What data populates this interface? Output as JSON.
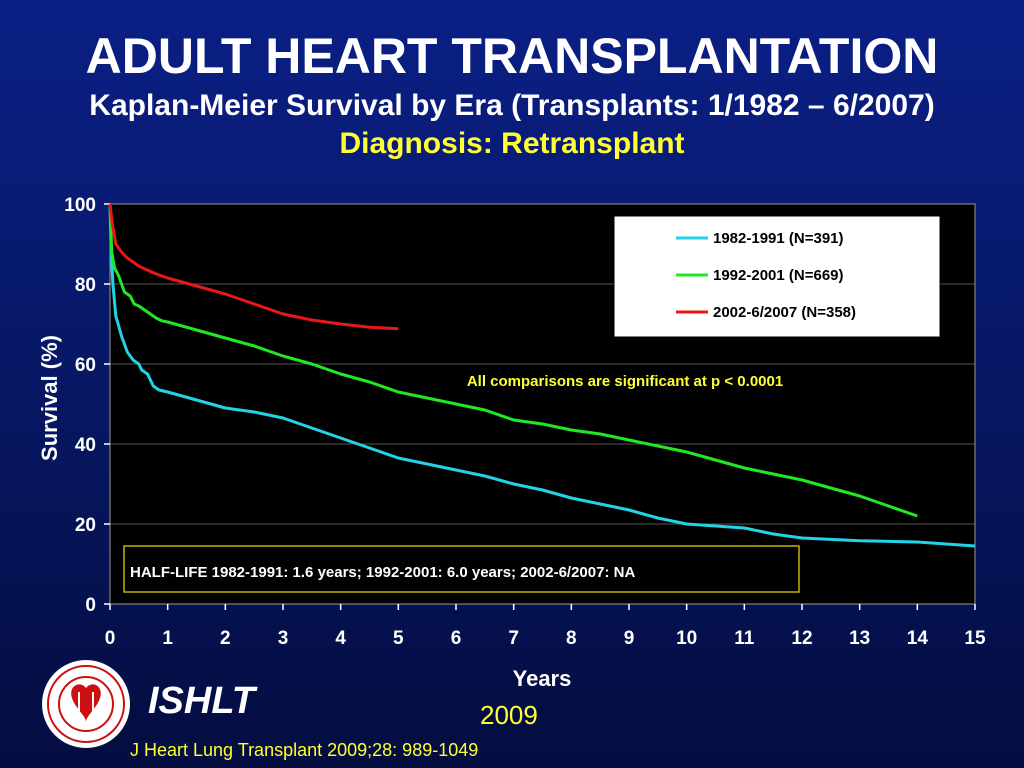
{
  "slide": {
    "title": "ADULT HEART TRANSPLANTATION",
    "subtitle": "Kaplan-Meier Survival by Era (Transplants: 1/1982 – 6/2007)",
    "diagnosis": "Diagnosis: Retransplant",
    "org": "ISHLT",
    "year": "2009",
    "citation": "J Heart Lung Transplant 2009;28: 989-1049"
  },
  "chart_data": {
    "type": "line",
    "xlabel": "Years",
    "ylabel": "Survival (%)",
    "xlim": [
      0,
      15
    ],
    "ylim": [
      0,
      100
    ],
    "x_ticks": [
      0,
      1,
      2,
      3,
      4,
      5,
      6,
      7,
      8,
      9,
      10,
      11,
      12,
      13,
      14,
      15
    ],
    "y_ticks": [
      0,
      20,
      40,
      60,
      80,
      100
    ],
    "grid": "horizontal",
    "legend_position": "top-right",
    "annotation": "All comparisons are significant at p < 0.0001",
    "half_life_note": "HALF-LIFE 1982-1991: 1.6 years; 1992-2001: 6.0 years; 2002-6/2007: NA",
    "series": [
      {
        "name": "1982-1991 (N=391)",
        "color": "#22d3e6",
        "points": [
          [
            0,
            100
          ],
          [
            0.02,
            88
          ],
          [
            0.05,
            80
          ],
          [
            0.1,
            72
          ],
          [
            0.2,
            67
          ],
          [
            0.3,
            63
          ],
          [
            0.4,
            61
          ],
          [
            0.5,
            60
          ],
          [
            0.55,
            58.5
          ],
          [
            0.65,
            57.5
          ],
          [
            0.75,
            54.5
          ],
          [
            0.85,
            53.5
          ],
          [
            1,
            53
          ],
          [
            1.5,
            51
          ],
          [
            2,
            49
          ],
          [
            2.5,
            48
          ],
          [
            3,
            46.5
          ],
          [
            3.5,
            44
          ],
          [
            4,
            41.5
          ],
          [
            4.5,
            39
          ],
          [
            5,
            36.5
          ],
          [
            5.5,
            35
          ],
          [
            6,
            33.5
          ],
          [
            6.5,
            32
          ],
          [
            7,
            30
          ],
          [
            7.5,
            28.5
          ],
          [
            8,
            26.5
          ],
          [
            8.5,
            25
          ],
          [
            9,
            23.5
          ],
          [
            9.5,
            21.5
          ],
          [
            10,
            20
          ],
          [
            10.5,
            19.5
          ],
          [
            11,
            19
          ],
          [
            11.5,
            17.5
          ],
          [
            12,
            16.5
          ],
          [
            13,
            15.8
          ],
          [
            14,
            15.5
          ],
          [
            15,
            14.5
          ]
        ]
      },
      {
        "name": "1992-2001 (N=669)",
        "color": "#22e822",
        "points": [
          [
            0,
            100
          ],
          [
            0.03,
            88
          ],
          [
            0.08,
            84
          ],
          [
            0.15,
            82
          ],
          [
            0.25,
            78
          ],
          [
            0.35,
            77
          ],
          [
            0.42,
            75
          ],
          [
            0.5,
            74.5
          ],
          [
            0.6,
            73.5
          ],
          [
            0.7,
            72.5
          ],
          [
            0.8,
            71.5
          ],
          [
            0.9,
            70.8
          ],
          [
            1,
            70.5
          ],
          [
            1.5,
            68.5
          ],
          [
            2,
            66.5
          ],
          [
            2.5,
            64.5
          ],
          [
            3,
            62
          ],
          [
            3.5,
            60
          ],
          [
            4,
            57.5
          ],
          [
            4.5,
            55.5
          ],
          [
            5,
            53
          ],
          [
            5.5,
            51.5
          ],
          [
            6,
            50
          ],
          [
            6.5,
            48.5
          ],
          [
            7,
            46
          ],
          [
            7.5,
            45
          ],
          [
            8,
            43.5
          ],
          [
            8.5,
            42.5
          ],
          [
            9,
            41
          ],
          [
            9.5,
            39.5
          ],
          [
            10,
            38
          ],
          [
            10.5,
            36
          ],
          [
            11,
            34
          ],
          [
            11.5,
            32.5
          ],
          [
            12,
            31
          ],
          [
            12.5,
            29
          ],
          [
            13,
            27
          ],
          [
            13.5,
            24.5
          ],
          [
            14,
            22
          ]
        ]
      },
      {
        "name": "2002-6/2007 (N=358)",
        "color": "#e81818",
        "points": [
          [
            0,
            100
          ],
          [
            0.04,
            95
          ],
          [
            0.1,
            90
          ],
          [
            0.2,
            88
          ],
          [
            0.3,
            86.5
          ],
          [
            0.4,
            85.5
          ],
          [
            0.5,
            84.5
          ],
          [
            0.6,
            83.8
          ],
          [
            0.75,
            82.8
          ],
          [
            0.9,
            82
          ],
          [
            1,
            81.5
          ],
          [
            1.5,
            79.5
          ],
          [
            2,
            77.5
          ],
          [
            2.5,
            75
          ],
          [
            3,
            72.5
          ],
          [
            3.5,
            71
          ],
          [
            4,
            70
          ],
          [
            4.5,
            69.2
          ],
          [
            5,
            68.8
          ]
        ]
      }
    ]
  }
}
